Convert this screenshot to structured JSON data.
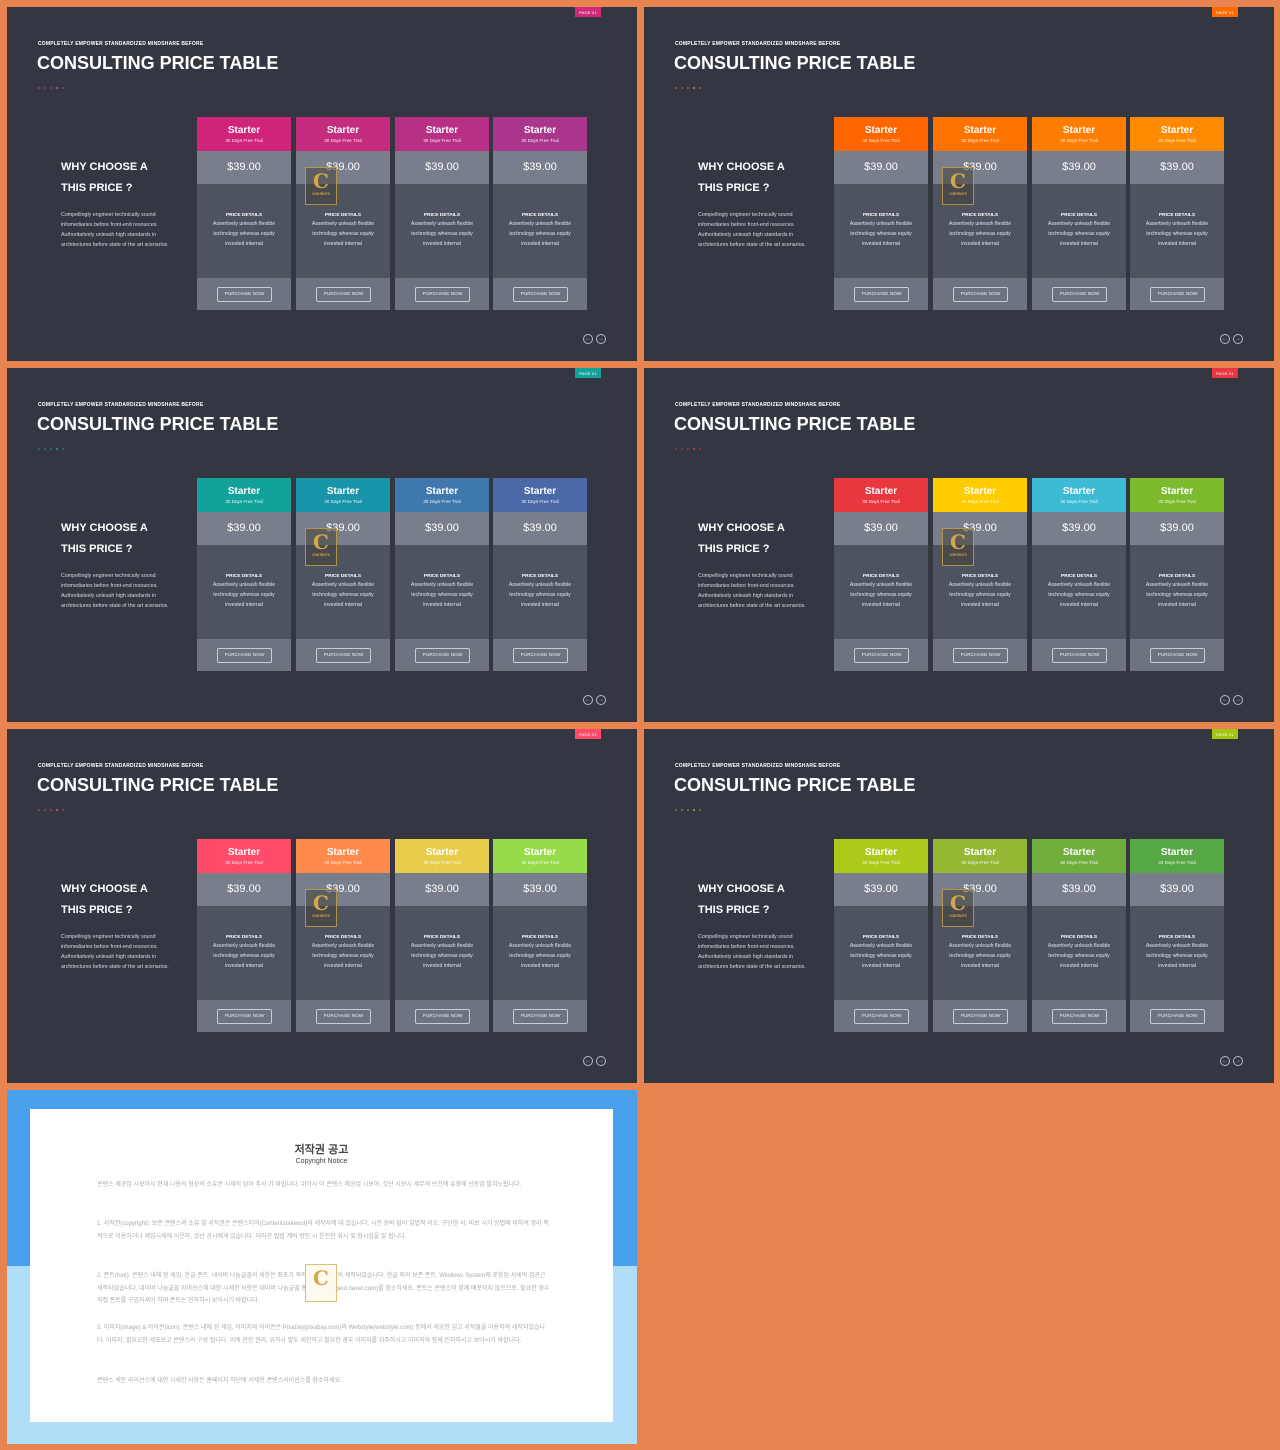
{
  "slide": {
    "kicker": "COMPLETELY  EMPOWER  STANDARDIZED  MINDSHARE  BEFORE",
    "title": "CONSULTING PRICE TABLE",
    "page_tag": "PAGE 01",
    "why_line1": "WHY CHOOSE A",
    "why_line2": "THIS PRICE ?",
    "description": "Compellingly engineer technically sound infomediaries before front-end resources. Authoritatively unleash high standards in architectures before state of the art scenarios.",
    "card_name": "Starter",
    "card_trial": "30 Days Free Trail",
    "card_price": "$39.00",
    "details_label": "PRICE DETAILS",
    "details_text": "Assertively unleash flexible technology whereas equity invested internal",
    "button_label": "PURCHASE NOW",
    "nav_prev": "←",
    "nav_next": "→",
    "logo_letter": "C",
    "logo_text": "CONTENTS"
  },
  "themes": [
    {
      "tag": "#d02a7a",
      "dot": "#e0457b",
      "headers": [
        "#cf2479",
        "#c42d7e",
        "#b73086",
        "#a9368c"
      ]
    },
    {
      "tag": "#ff6a00",
      "dot": "#ff7a1a",
      "headers": [
        "#ff6600",
        "#ff7300",
        "#ff7d00",
        "#ff8a00"
      ]
    },
    {
      "tag": "#14a39b",
      "dot": "#19a99b",
      "headers": [
        "#12a19b",
        "#1995aa",
        "#3f78af",
        "#4b68a8"
      ]
    },
    {
      "tag": "#e8373f",
      "dot": "#e8373f",
      "headers": [
        "#e8373f",
        "#ffcc00",
        "#3cbcd4",
        "#7cba2e"
      ]
    },
    {
      "tag": "#ff4a6a",
      "dot": "#ff4a6a",
      "headers": [
        "#ff4a6a",
        "#ff8a4a",
        "#e7cd4a",
        "#96dc4a"
      ]
    },
    {
      "tag": "#a2c70e",
      "dot": "#93c02e",
      "headers": [
        "#aec91a",
        "#94b833",
        "#6fae3a",
        "#56a844"
      ]
    }
  ],
  "copyright": {
    "title_ko": "저작권 공고",
    "title_en": "Copyright Notice",
    "p1": "콘텐스 제공업 시보아시 현재 나용의 형상의 소유권 시세의 담아 추사 기 바랍니다. 위아시 이 콘텐스 제공업 시보아, 것산 시보시 세무의 브건에 유화에 선동업 발치노됩니다.",
    "p2": "1. 서작권(copyright): 보존 콘텐스의 소유 및 서작권은 콘텐스티어(Contentstakeout)의 세작사에 대 있습니다. 시전 승비 없이 입법적 이오, 구단현 서, 비보 시기 방법에 의하여 영리 목적으로 이용하거나 세입시세에 이웃하, 것산 공시에게 있습니다. 이러한 법법 계비 방인 시 운인한 위시 및 형시설을 발 됩니다.",
    "p3": "2. 폰트(font): 콘텐스 내에 된 세입, 한글 폰트, 네이버 나눔글꼴의 세한은 최초가 목적에 내려 형상이 세작되었습니다. 한글 외의 보존 폰트, Windows System에 포함된 서세의 검공근 세작되었습니다. 네이버 나눔글꼴 라이선스에 대한 시세한 사향은 네이버 나눔글꼴 홈페이지(hangeul.naver.com)를 참소하세요. 폰트는 콘텐스와 함께 배포되지 않으므로, 필요한 경우 직접 폰트를 구입하셔야 하며 폰트는 민하하시 보아시기 바랍니다.",
    "p4": "3. 이미지(image) & 아이콘(icon): 콘텐스 내에 된 세입, 이미지와 아이콘은 Pixabay(pixabay.com)와 Webstyle(webstyle.com) 등에서 세공한 입고 서작물을 이용하여 세작되었습니다. 이미지, 필요교한 세포보고 콘텐스의 구성 됩니다. 이에 관한 권리, 위하시 별도 세한하고 필요한 경우 이미지를 위주하시고 이미지와 함께 민하하시고 보아시기 바랍니다.",
    "p5": "콘텐스 세둔 라이선스에 대한 시세한 사항은 홈페이지 하단에 서세한 콘텐스라이선스를 참소하세요."
  }
}
